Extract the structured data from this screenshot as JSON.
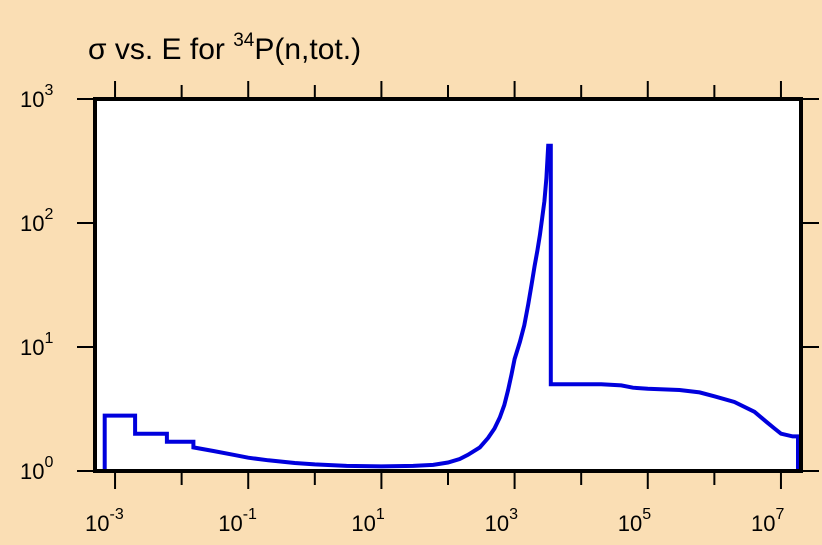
{
  "chart_data": {
    "type": "line",
    "title": {
      "prefix": "σ vs. E for ",
      "superscript": "34",
      "suffix": "P(n,tot.)"
    },
    "xlabel": "",
    "ylabel": "",
    "x_scale": "log",
    "y_scale": "log",
    "xlim": [
      0.0005,
      20000000
    ],
    "ylim": [
      1,
      1000
    ],
    "grid": false,
    "x_ticks": [
      {
        "value": 0.001,
        "base": "10",
        "exp": "-3"
      },
      {
        "value": 0.1,
        "base": "10",
        "exp": "-1"
      },
      {
        "value": 10,
        "base": "10",
        "exp": "1"
      },
      {
        "value": 1000,
        "base": "10",
        "exp": "3"
      },
      {
        "value": 100000,
        "base": "10",
        "exp": "5"
      },
      {
        "value": 10000000,
        "base": "10",
        "exp": "7"
      }
    ],
    "y_ticks": [
      {
        "value": 1,
        "base": "10",
        "exp": "0"
      },
      {
        "value": 10,
        "base": "10",
        "exp": "1"
      },
      {
        "value": 100,
        "base": "10",
        "exp": "2"
      },
      {
        "value": 1000,
        "base": "10",
        "exp": "3"
      }
    ],
    "series": [
      {
        "color": "#0000dd",
        "style": "step",
        "points": [
          [
            0.0007,
            1.0
          ],
          [
            0.0007,
            2.8
          ],
          [
            0.002,
            2.8
          ],
          [
            0.002,
            2.0
          ],
          [
            0.006,
            2.0
          ],
          [
            0.006,
            1.72
          ],
          [
            0.015,
            1.72
          ],
          [
            0.015,
            1.55
          ],
          [
            0.03,
            1.45
          ],
          [
            0.06,
            1.35
          ],
          [
            0.1,
            1.28
          ],
          [
            0.2,
            1.22
          ],
          [
            0.5,
            1.16
          ],
          [
            1,
            1.13
          ],
          [
            3,
            1.1
          ],
          [
            10,
            1.09
          ],
          [
            30,
            1.1
          ],
          [
            60,
            1.12
          ],
          [
            100,
            1.17
          ],
          [
            150,
            1.25
          ],
          [
            200,
            1.35
          ],
          [
            300,
            1.55
          ],
          [
            400,
            1.85
          ],
          [
            500,
            2.2
          ],
          [
            600,
            2.7
          ],
          [
            700,
            3.4
          ],
          [
            800,
            4.5
          ],
          [
            900,
            6.0
          ],
          [
            1000,
            8.0
          ],
          [
            1200,
            11
          ],
          [
            1400,
            15
          ],
          [
            1600,
            22
          ],
          [
            1800,
            32
          ],
          [
            2000,
            45
          ],
          [
            2200,
            60
          ],
          [
            2400,
            80
          ],
          [
            2600,
            110
          ],
          [
            2800,
            150
          ],
          [
            3000,
            230
          ],
          [
            3200,
            420
          ],
          [
            3500,
            420
          ],
          [
            3500,
            5.0
          ],
          [
            20000,
            5.0
          ],
          [
            40000,
            4.9
          ],
          [
            60000,
            4.7
          ],
          [
            100000,
            4.6
          ],
          [
            300000,
            4.5
          ],
          [
            600000,
            4.3
          ],
          [
            1000000,
            4.0
          ],
          [
            2000000,
            3.6
          ],
          [
            4000000,
            3.0
          ],
          [
            6000000,
            2.5
          ],
          [
            8000000,
            2.2
          ],
          [
            10000000,
            2.0
          ],
          [
            15000000,
            1.9
          ],
          [
            18000000,
            1.9
          ],
          [
            18000000,
            1.0
          ]
        ]
      }
    ]
  }
}
